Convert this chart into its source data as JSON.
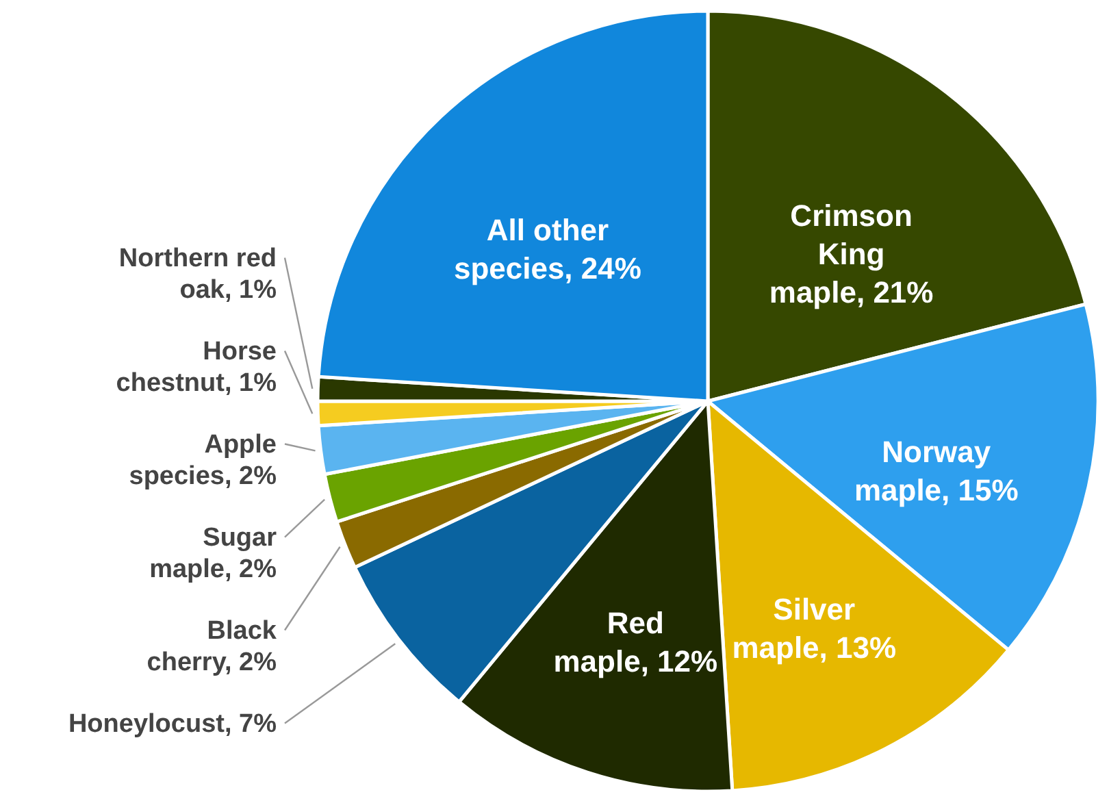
{
  "chart_data": {
    "type": "pie",
    "categories": [
      "Crimson King maple",
      "Norway maple",
      "Silver maple",
      "Red maple",
      "Honeylocust",
      "Black cherry",
      "Sugar maple",
      "Apple species",
      "Horse chestnut",
      "Northern red oak",
      "All other species"
    ],
    "values": [
      21,
      15,
      13,
      12,
      7,
      2,
      2,
      2,
      1,
      1,
      24
    ],
    "value_labels": [
      "21%",
      "15%",
      "13%",
      "12%",
      "7%",
      "2%",
      "2%",
      "2%",
      "1%",
      "1%",
      "24%"
    ],
    "colors": [
      "#364800",
      "#2e9fee",
      "#e6b800",
      "#1f2a00",
      "#0a63a0",
      "#8a6a00",
      "#6aa300",
      "#5ab4f0",
      "#f5cc20",
      "#2a3800",
      "#1187dc"
    ]
  }
}
